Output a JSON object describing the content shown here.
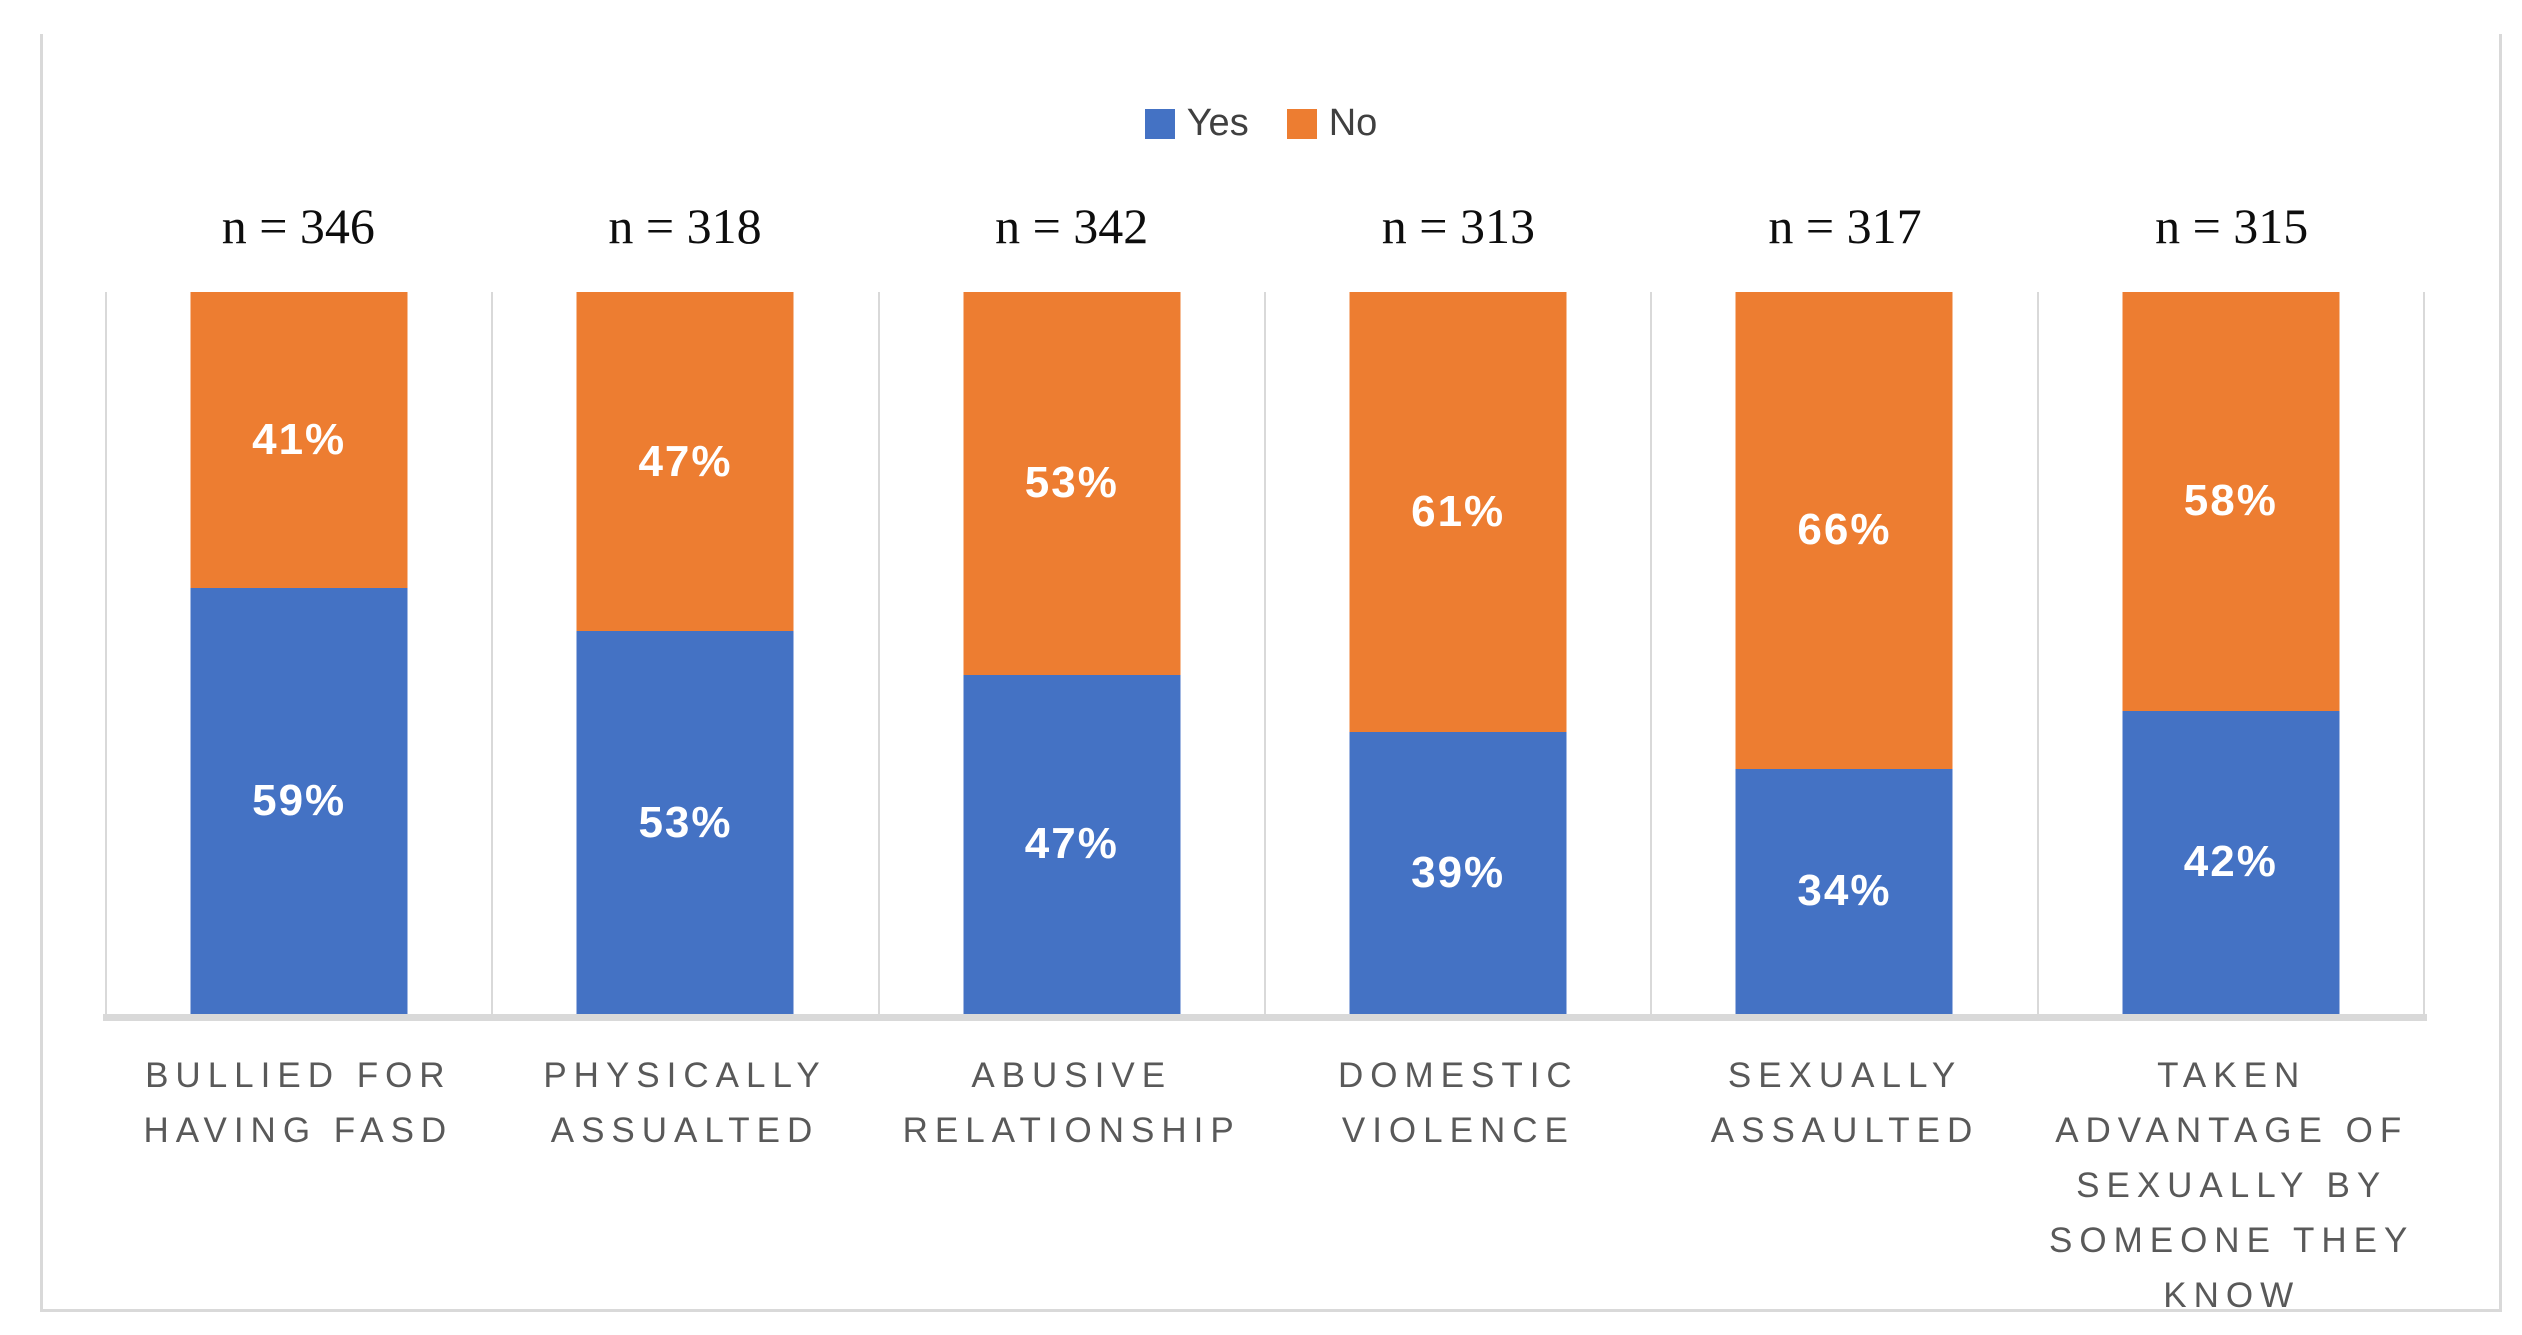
{
  "chart_data": {
    "type": "bar",
    "subtype": "stacked-100-percent",
    "orientation": "vertical",
    "title": "",
    "xlabel": "",
    "ylabel": "",
    "ylim": [
      0,
      100
    ],
    "value_format": "percent",
    "legend_position": "top",
    "gridlines": "vertical category separators, light gray",
    "categories": [
      "BULLIED FOR HAVING FASD",
      "PHYSICALLY ASSUALTED",
      "ABUSIVE RELATIONSHIP",
      "DOMESTIC VIOLENCE",
      "SEXUALLY ASSAULTED",
      "TAKEN ADVANTAGE OF SEXUALLY BY SOMEONE THEY KNOW"
    ],
    "category_display_lines": [
      "BULLIED FOR\nHAVING FASD",
      "PHYSICALLY\nASSUALTED",
      "ABUSIVE\nRELATIONSHIP",
      "DOMESTIC\nVIOLENCE",
      "SEXUALLY\nASSAULTED",
      "TAKEN\nADVANTAGE OF\nSEXUALLY BY\nSOMEONE THEY\nKNOW"
    ],
    "sample_sizes": [
      "n = 346",
      "n = 318",
      "n = 342",
      "n = 313",
      "n = 317",
      "n = 315"
    ],
    "series": [
      {
        "name": "Yes",
        "color": "#4472C4",
        "position": "bottom",
        "values": [
          59,
          53,
          47,
          39,
          34,
          42
        ],
        "labels": [
          "59%",
          "53%",
          "47%",
          "39%",
          "34%",
          "42%"
        ]
      },
      {
        "name": "No",
        "color": "#ED7D31",
        "position": "top",
        "values": [
          41,
          47,
          53,
          61,
          66,
          58
        ],
        "labels": [
          "41%",
          "47%",
          "53%",
          "61%",
          "66%",
          "58%"
        ]
      }
    ],
    "colors": {
      "yes_blue": "#4472C4",
      "no_orange": "#ED7D31",
      "separator_gray": "#D9D9D9",
      "axis_line_gray": "#D9D9D9",
      "category_text": "#595959",
      "legend_text": "#404040",
      "sample_size_text": "#0d0d0d",
      "value_label_text": "#FFFFFF",
      "background": "#FFFFFF"
    }
  }
}
